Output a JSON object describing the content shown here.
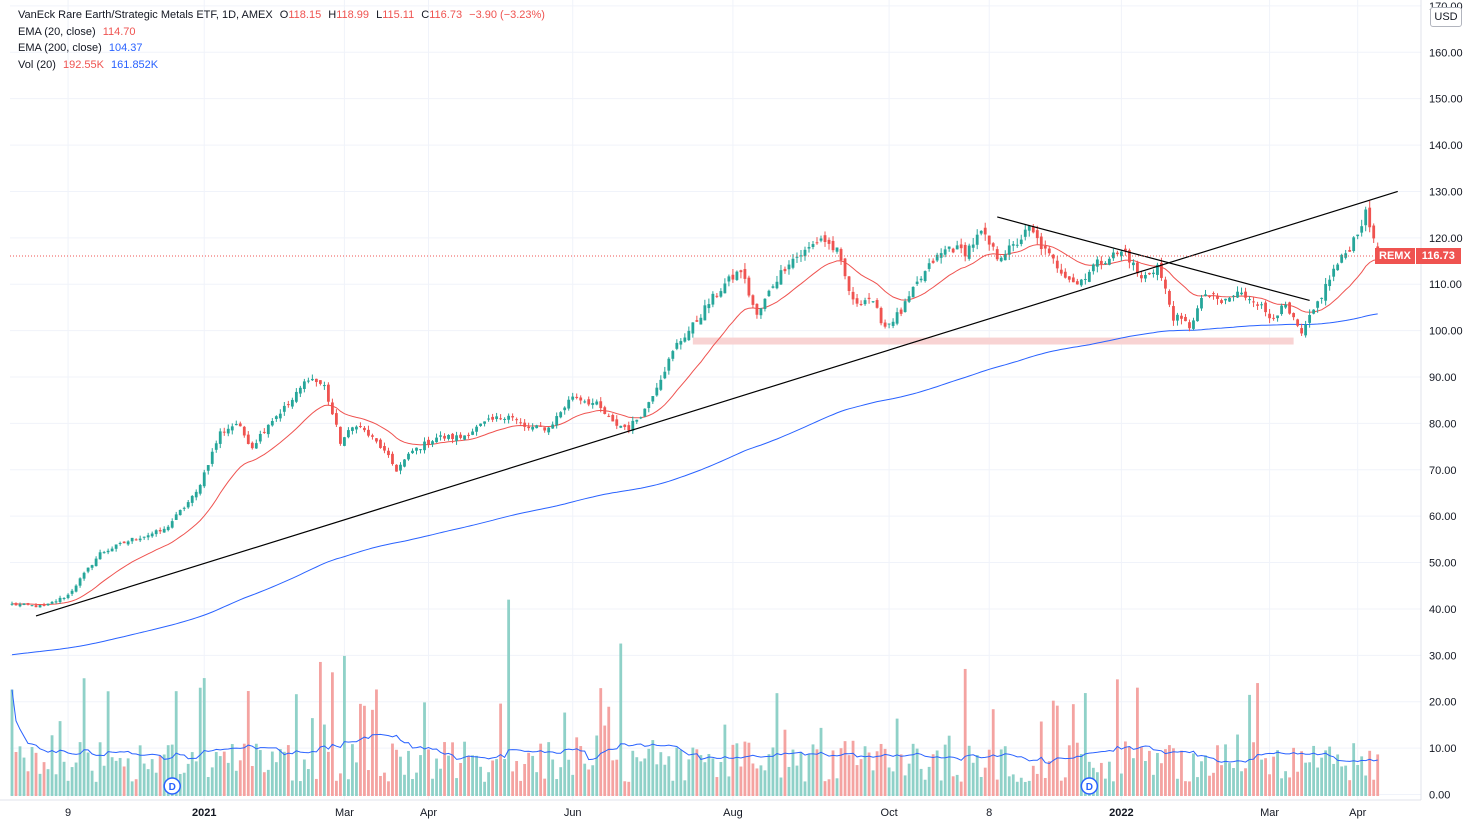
{
  "legend": {
    "title": "VanEck Rare Earth/Strategic Metals ETF, 1D, AMEX",
    "o_label": "O",
    "o_val": "118.15",
    "h_label": "H",
    "h_val": "118.99",
    "l_label": "L",
    "l_val": "115.11",
    "c_label": "C",
    "c_val": "116.73",
    "change": "−3.90 (−3.23%)",
    "ema20_label": "EMA (20, close)",
    "ema20_val": "114.70",
    "ema200_label": "EMA (200, close)",
    "ema200_val": "104.37",
    "vol_label": "Vol (20)",
    "vol_val": "192.55K",
    "vol_ma_val": "161.852K"
  },
  "currency": "USD",
  "price_tag": {
    "symbol": "REMX",
    "price": "116.73"
  },
  "colors": {
    "up": "#26a69a",
    "down": "#ef5350",
    "ema20": "#ef5350",
    "ema200": "#2962ff",
    "trend": "#000000",
    "support_zone": "#f8d3d3",
    "volume_ma": "#2962ff"
  },
  "chart_data": {
    "type": "candlestick",
    "title": "VanEck Rare Earth/Strategic Metals ETF, 1D, AMEX",
    "price_axis": {
      "ticks": [
        0,
        10,
        20,
        30,
        40,
        50,
        60,
        70,
        80,
        90,
        100,
        110,
        120,
        130,
        140,
        150,
        160,
        170
      ]
    },
    "price_tick_labels": [
      "0.00",
      "10.00",
      "20.00",
      "30.00",
      "40.00",
      "50.00",
      "60.00",
      "70.00",
      "80.00",
      "90.00",
      "100.00",
      "110.00",
      "120.00",
      "130.00",
      "140.00",
      "150.00",
      "160.00",
      "170.00"
    ],
    "time_axis_labels": [
      "9",
      "2021",
      "Mar",
      "Apr",
      "Jun",
      "Aug",
      "Oct",
      "8",
      "2022",
      "Mar",
      "Apr"
    ],
    "time_axis_bold": [
      false,
      true,
      false,
      false,
      false,
      false,
      false,
      false,
      true,
      false,
      false
    ],
    "close_anchors": [
      [
        0,
        41
      ],
      [
        8,
        40.5
      ],
      [
        14,
        43
      ],
      [
        22,
        52
      ],
      [
        30,
        55
      ],
      [
        38,
        57
      ],
      [
        46,
        65
      ],
      [
        52,
        78
      ],
      [
        56,
        80
      ],
      [
        60,
        75
      ],
      [
        64,
        80
      ],
      [
        70,
        85
      ],
      [
        74,
        90
      ],
      [
        78,
        88
      ],
      [
        82,
        76
      ],
      [
        86,
        80
      ],
      [
        92,
        75
      ],
      [
        96,
        70
      ],
      [
        100,
        74
      ],
      [
        106,
        77
      ],
      [
        112,
        77
      ],
      [
        118,
        80
      ],
      [
        124,
        82
      ],
      [
        128,
        79
      ],
      [
        134,
        79
      ],
      [
        140,
        86
      ],
      [
        146,
        84
      ],
      [
        150,
        80
      ],
      [
        154,
        79
      ],
      [
        158,
        83
      ],
      [
        162,
        90
      ],
      [
        166,
        97
      ],
      [
        170,
        101
      ],
      [
        174,
        106
      ],
      [
        178,
        110
      ],
      [
        182,
        113
      ],
      [
        186,
        103
      ],
      [
        190,
        110
      ],
      [
        194,
        115
      ],
      [
        198,
        117
      ],
      [
        202,
        120
      ],
      [
        206,
        117
      ],
      [
        210,
        106
      ],
      [
        214,
        107
      ],
      [
        218,
        101
      ],
      [
        222,
        104
      ],
      [
        226,
        110
      ],
      [
        230,
        115
      ],
      [
        234,
        118
      ],
      [
        238,
        117
      ],
      [
        242,
        121
      ],
      [
        246,
        116
      ],
      [
        250,
        118
      ],
      [
        254,
        122
      ],
      [
        258,
        117
      ],
      [
        262,
        113
      ],
      [
        266,
        110
      ],
      [
        270,
        114
      ],
      [
        274,
        116
      ],
      [
        278,
        117
      ],
      [
        282,
        111
      ],
      [
        286,
        114
      ],
      [
        290,
        103
      ],
      [
        294,
        101
      ],
      [
        298,
        108
      ],
      [
        302,
        106
      ],
      [
        306,
        108
      ],
      [
        310,
        107
      ],
      [
        314,
        103
      ],
      [
        318,
        105
      ],
      [
        322,
        99
      ],
      [
        326,
        106
      ],
      [
        330,
        113
      ],
      [
        334,
        118
      ],
      [
        338,
        125
      ],
      [
        340,
        120
      ],
      [
        341,
        116.7
      ]
    ],
    "ema20_label": "EMA (20, close)",
    "ema200_label": "EMA (200, close)",
    "ema20_last": 114.7,
    "ema200_last": 104.37,
    "volume_ma_last": 7,
    "volume_axis_ticks": [
      0,
      10,
      20,
      30
    ],
    "support_zone": [
      97,
      98.5
    ],
    "trendlines": [
      {
        "name": "rising support",
        "from": [
          6,
          38.5
        ],
        "to": [
          346,
          130
        ]
      },
      {
        "name": "falling resistance",
        "from": [
          246,
          124.5
        ],
        "to": [
          324,
          106.5
        ]
      }
    ],
    "dividend_markers": [
      "D",
      "D"
    ]
  }
}
